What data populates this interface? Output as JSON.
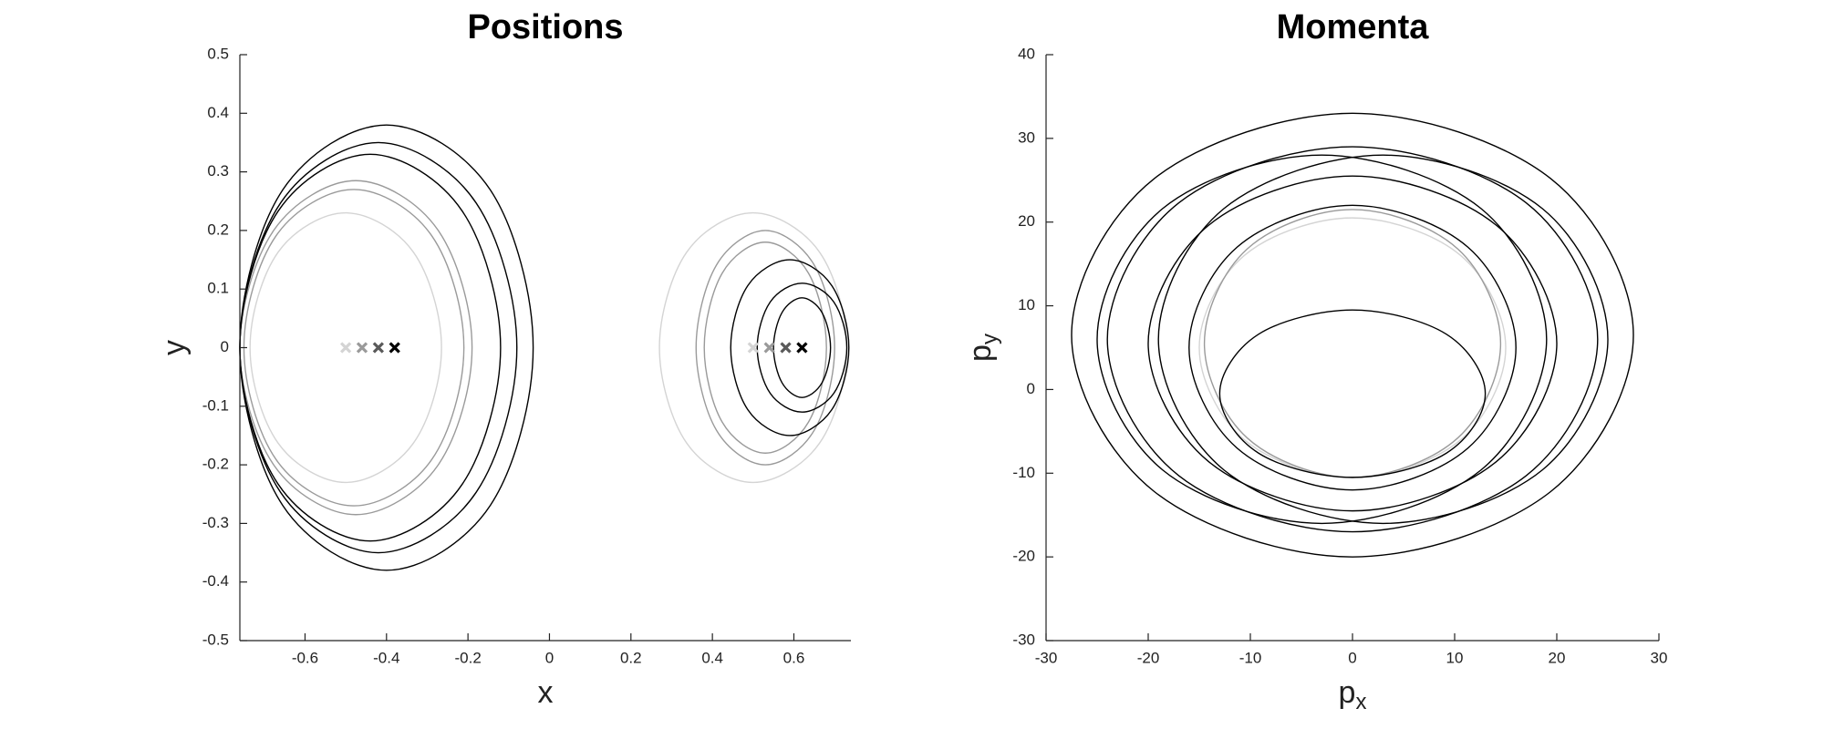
{
  "chart_data": [
    {
      "type": "line",
      "title": "Positions",
      "xlabel": "x",
      "ylabel": "y",
      "xlim": [
        -0.76,
        0.74
      ],
      "ylim": [
        -0.5,
        0.5
      ],
      "xticks": [
        -0.6,
        -0.4,
        -0.2,
        0,
        0.2,
        0.4,
        0.6
      ],
      "yticks": [
        -0.5,
        -0.4,
        -0.3,
        -0.2,
        -0.1,
        0,
        0.1,
        0.2,
        0.3,
        0.4,
        0.5
      ],
      "series": [
        {
          "color": "#d4d4d4",
          "x": [
            -0.265,
            -0.334,
            -0.5,
            -0.666,
            -0.735,
            -0.666,
            -0.5,
            -0.334,
            -0.265
          ],
          "y": [
            0,
            0.163,
            0.23,
            0.163,
            0,
            -0.163,
            -0.23,
            -0.163,
            0
          ]
        },
        {
          "color": "#d4d4d4",
          "x": [
            0.73,
            0.663,
            0.5,
            0.337,
            0.27,
            0.337,
            0.5,
            0.663,
            0.73
          ],
          "y": [
            0,
            0.163,
            0.23,
            0.163,
            0,
            -0.163,
            -0.23,
            -0.163,
            0
          ]
        },
        {
          "color": "#9a9a9a",
          "x": [
            -0.19,
            -0.274,
            -0.475,
            -0.676,
            -0.76,
            -0.676,
            -0.475,
            -0.274,
            -0.19
          ],
          "y": [
            0,
            0.201,
            0.285,
            0.201,
            0,
            -0.201,
            -0.285,
            -0.201,
            0
          ]
        },
        {
          "color": "#9a9a9a",
          "x": [
            -0.21,
            -0.289,
            -0.48,
            -0.671,
            -0.75,
            -0.671,
            -0.48,
            -0.289,
            -0.21
          ],
          "y": [
            0,
            0.191,
            0.27,
            0.191,
            0,
            -0.191,
            -0.27,
            -0.191,
            0
          ]
        },
        {
          "color": "#9a9a9a",
          "x": [
            0.7,
            0.65,
            0.53,
            0.41,
            0.36,
            0.41,
            0.53,
            0.65,
            0.7
          ],
          "y": [
            0,
            0.141,
            0.2,
            0.141,
            0,
            -0.141,
            -0.2,
            -0.141,
            0
          ]
        },
        {
          "color": "#9a9a9a",
          "x": [
            0.68,
            0.636,
            0.53,
            0.424,
            0.38,
            0.424,
            0.53,
            0.636,
            0.68
          ],
          "y": [
            0,
            0.127,
            0.18,
            0.127,
            0,
            -0.127,
            -0.18,
            -0.127,
            0
          ]
        },
        {
          "color": "#000000",
          "x": [
            -0.04,
            -0.145,
            -0.4,
            -0.655,
            -0.76,
            -0.655,
            -0.4,
            -0.145,
            -0.04
          ],
          "y": [
            0,
            0.269,
            0.38,
            0.269,
            0,
            -0.269,
            -0.38,
            -0.269,
            0
          ]
        },
        {
          "color": "#000000",
          "x": [
            -0.08,
            -0.18,
            -0.42,
            -0.66,
            -0.76,
            -0.66,
            -0.42,
            -0.18,
            -0.08
          ],
          "y": [
            0,
            0.247,
            0.35,
            0.247,
            0,
            -0.247,
            -0.35,
            -0.247,
            0
          ]
        },
        {
          "color": "#000000",
          "x": [
            -0.12,
            -0.214,
            -0.44,
            -0.666,
            -0.76,
            -0.666,
            -0.44,
            -0.214,
            -0.12
          ],
          "y": [
            0,
            0.233,
            0.33,
            0.233,
            0,
            -0.233,
            -0.33,
            -0.233,
            0
          ]
        },
        {
          "color": "#000000",
          "x": [
            0.735,
            0.693,
            0.59,
            0.487,
            0.445,
            0.487,
            0.59,
            0.693,
            0.735
          ],
          "y": [
            0,
            0.106,
            0.15,
            0.106,
            0,
            -0.106,
            -0.15,
            -0.106,
            0
          ]
        },
        {
          "color": "#000000",
          "x": [
            0.73,
            0.698,
            0.62,
            0.542,
            0.51,
            0.542,
            0.62,
            0.698,
            0.73
          ],
          "y": [
            0,
            0.078,
            0.11,
            0.078,
            0,
            -0.078,
            -0.11,
            -0.078,
            0
          ]
        },
        {
          "color": "#000000",
          "x": [
            0.69,
            0.669,
            0.62,
            0.571,
            0.55,
            0.571,
            0.62,
            0.669,
            0.69
          ],
          "y": [
            0,
            0.06,
            0.085,
            0.06,
            0,
            -0.06,
            -0.085,
            -0.06,
            0
          ]
        }
      ],
      "markers": {
        "x": [
          -0.5,
          -0.46,
          -0.42,
          -0.38,
          0.5,
          0.54,
          0.58,
          0.62
        ],
        "y": [
          0,
          0,
          0,
          0,
          0,
          0,
          0,
          0
        ],
        "colors": [
          "#d4d4d4",
          "#9a9a9a",
          "#5a5a5a",
          "#000000",
          "#d4d4d4",
          "#9a9a9a",
          "#5a5a5a",
          "#000000"
        ]
      }
    },
    {
      "type": "line",
      "title": "Momenta",
      "xlabel": [
        "p",
        "x"
      ],
      "ylabel": [
        "p",
        "y"
      ],
      "xlim": [
        -30,
        30
      ],
      "ylim": [
        -30,
        40
      ],
      "xticks": [
        -30,
        -20,
        -10,
        0,
        10,
        20,
        30
      ],
      "yticks": [
        -30,
        -20,
        -10,
        0,
        10,
        20,
        30,
        40
      ],
      "series": [
        {
          "color": "#d4d4d4",
          "x": [
            15,
            10.6,
            0,
            -10.6,
            -15,
            -10.6,
            0,
            10.6,
            15
          ],
          "y": [
            5,
            16,
            20.5,
            16,
            5,
            -6,
            -10.5,
            -6,
            5
          ]
        },
        {
          "color": "#9a9a9a",
          "x": [
            14.5,
            10.3,
            0,
            -10.3,
            -14.5,
            -10.3,
            0,
            10.3,
            14.5
          ],
          "y": [
            5.5,
            16.8,
            21.5,
            16.8,
            5.5,
            -5.8,
            -10.5,
            -5.8,
            5.5
          ]
        },
        {
          "color": "#000000",
          "x": [
            27.5,
            19.4,
            0,
            -19.4,
            -27.5,
            -19.4,
            0,
            19.4,
            27.5
          ],
          "y": [
            6.5,
            25.2,
            33,
            25.2,
            6.5,
            -12.2,
            -20,
            -12.2,
            6.5
          ]
        },
        {
          "color": "#000000",
          "x": [
            24,
            17,
            0,
            -17,
            -24,
            -17,
            0,
            17,
            24
          ],
          "y": [
            6,
            22.3,
            29,
            22.3,
            6,
            -10.3,
            -17,
            -10.3,
            6
          ]
        },
        {
          "color": "#000000",
          "x": [
            19,
            12.6,
            -3,
            -18.6,
            -25,
            -18.6,
            -3,
            12.6,
            19
          ],
          "y": [
            6,
            21.6,
            28,
            21.6,
            6,
            -9.6,
            -16,
            -9.6,
            6
          ]
        },
        {
          "color": "#000000",
          "x": [
            25,
            18.6,
            3,
            -12.6,
            -19,
            -12.6,
            3,
            18.6,
            25
          ],
          "y": [
            6,
            21.6,
            28,
            21.6,
            6,
            -9.6,
            -16,
            -9.6,
            6
          ]
        },
        {
          "color": "#000000",
          "x": [
            20,
            14.1,
            0,
            -14.1,
            -20,
            -14.1,
            0,
            14.1,
            20
          ],
          "y": [
            5.5,
            19.6,
            25.5,
            19.6,
            5.5,
            -8.6,
            -14.5,
            -8.6,
            5.5
          ]
        },
        {
          "color": "#000000",
          "x": [
            16,
            11.3,
            0,
            -11.3,
            -16,
            -11.3,
            0,
            11.3,
            16
          ],
          "y": [
            5,
            17,
            22,
            17,
            5,
            -7,
            -12,
            -7,
            5
          ]
        },
        {
          "color": "#000000",
          "x": [
            13,
            9.2,
            0,
            -9.2,
            -13,
            -9.2,
            0,
            9.2,
            13
          ],
          "y": [
            -0.5,
            6.6,
            9.5,
            6.6,
            -0.5,
            -7.6,
            -10.5,
            -7.6,
            -0.5
          ]
        }
      ]
    }
  ]
}
